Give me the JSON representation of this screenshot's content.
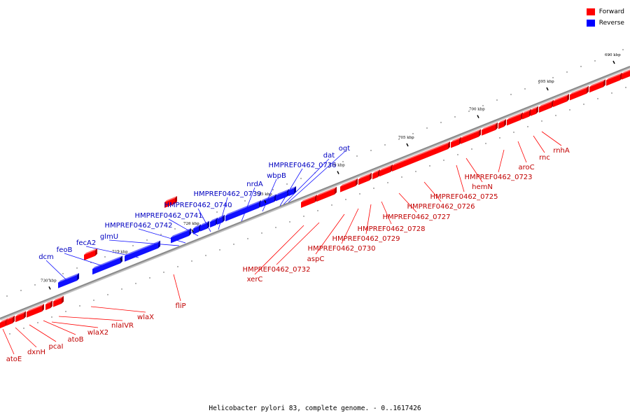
{
  "caption": "Helicobacter pylori 83, complete genome. - 0..1617426",
  "legend": [
    {
      "label": "Forward",
      "color": "#ff0000"
    },
    {
      "label": "Reverse",
      "color": "#0000ff"
    }
  ],
  "colors": {
    "forward": "#ff0000",
    "reverse": "#1010ff",
    "axis": "#8a8a8a"
  },
  "ticks": [
    "690 kbp",
    "695 kbp",
    "700 kbp",
    "705 kbp",
    "710 kbp",
    "715 kbp",
    "720 kbp",
    "725 kbp",
    "730 kbp"
  ],
  "reverse_labels": [
    "dcm",
    "feoB",
    "fecA2",
    "glmU",
    "HMPREF0462_0742",
    "HMPREF0462_0741",
    "HMPREF0462_0740",
    "HMPREF0462_0739",
    "nrdA",
    "wbpB",
    "HMPREF0462_0736",
    "dat",
    "ogt"
  ],
  "forward_labels": [
    "fliP",
    "wlaX",
    "nlaIVR",
    "wlaX2",
    "atoB",
    "pcaI",
    "dxnH",
    "atoE",
    "xerC",
    "HMPREF0462_0732",
    "aspC",
    "HMPREF0462_0730",
    "HMPREF0462_0729",
    "HMPREF0462_0728",
    "HMPREF0462_0727",
    "HMPREF0462_0726",
    "HMPREF0462_0725",
    "hemN",
    "HMPREF0462_0723",
    "aroC",
    "rnc",
    "rnhA"
  ]
}
